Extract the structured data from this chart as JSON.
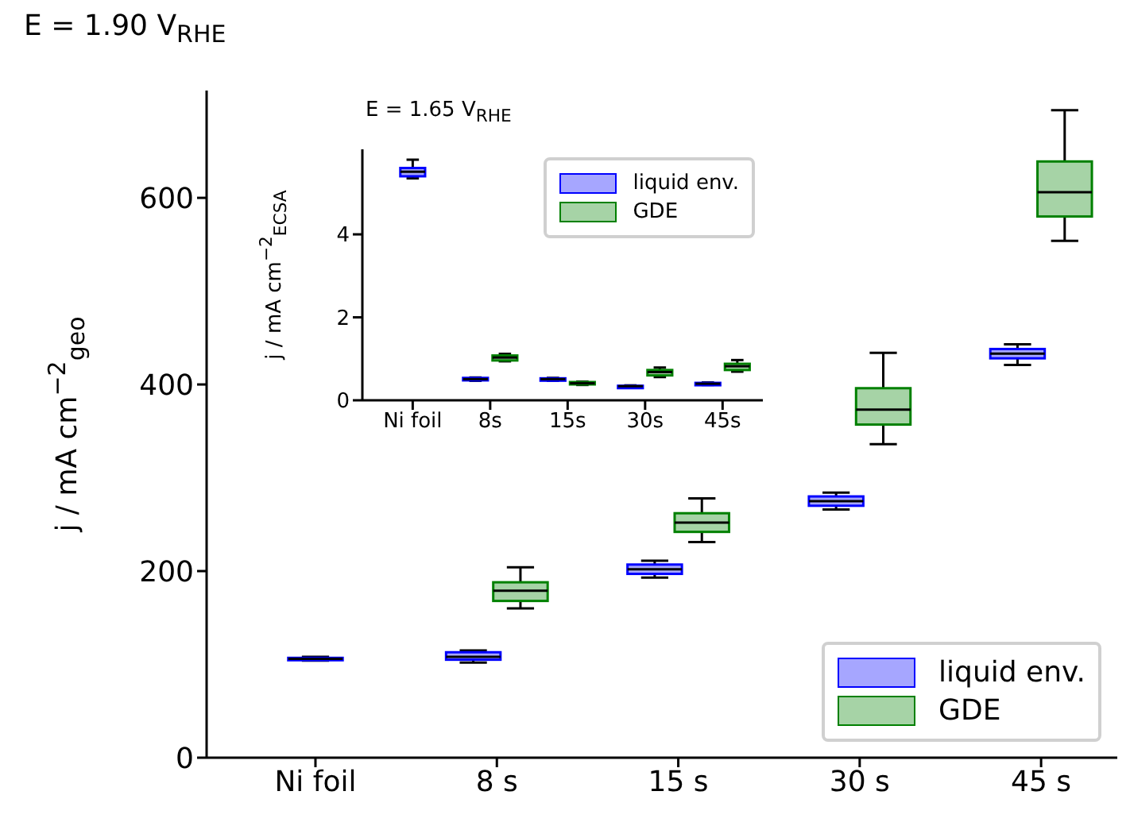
{
  "chart_data": [
    {
      "type": "box",
      "title": "E =  1.90 V$_{RHE}$",
      "ylabel": "j / mA cm$^{−2}$$_{geo}$",
      "categories": [
        "Ni foil",
        "8 s",
        "15 s",
        "30 s",
        "45 s"
      ],
      "ylim": [
        0,
        715
      ],
      "yticks": [
        0,
        200,
        400,
        600
      ],
      "legend": "bottom right",
      "series": [
        {
          "name": "liquid env.",
          "color": "#0000ff",
          "boxes": [
            {
              "low": 104,
              "q1": 105,
              "median": 106,
              "q3": 107,
              "high": 108
            },
            {
              "low": 102,
              "q1": 105,
              "median": 108,
              "q3": 113,
              "high": 115
            },
            {
              "low": 193,
              "q1": 197,
              "median": 202,
              "q3": 207,
              "high": 211
            },
            {
              "low": 266,
              "q1": 270,
              "median": 275,
              "q3": 280,
              "high": 284
            },
            {
              "low": 421,
              "q1": 428,
              "median": 433,
              "q3": 438,
              "high": 443
            }
          ]
        },
        {
          "name": "GDE",
          "color": "#008000",
          "boxes": [
            null,
            {
              "low": 160,
              "q1": 168,
              "median": 179,
              "q3": 188,
              "high": 204
            },
            {
              "low": 231,
              "q1": 242,
              "median": 252,
              "q3": 262,
              "high": 278
            },
            {
              "low": 336,
              "q1": 357,
              "median": 373,
              "q3": 396,
              "high": 434
            },
            {
              "low": 554,
              "q1": 580,
              "median": 606,
              "q3": 639,
              "high": 694
            }
          ]
        }
      ]
    },
    {
      "type": "box",
      "title": "E = 1.65 V$_{RHE}$",
      "ylabel": "j / mA cm$^{−2}$$_{ECSA}$",
      "categories": [
        "Ni foil",
        "8s",
        "15s",
        "30s",
        "45s"
      ],
      "ylim": [
        0,
        6.05
      ],
      "yticks": [
        0,
        2,
        4
      ],
      "legend": "top right",
      "series": [
        {
          "name": "liquid env.",
          "color": "#0000ff",
          "boxes": [
            {
              "low": 5.35,
              "q1": 5.4,
              "median": 5.51,
              "q3": 5.6,
              "high": 5.8
            },
            {
              "low": 0.47,
              "q1": 0.48,
              "median": 0.51,
              "q3": 0.54,
              "high": 0.55
            },
            {
              "low": 0.47,
              "q1": 0.49,
              "median": 0.51,
              "q3": 0.53,
              "high": 0.54
            },
            {
              "low": 0.32,
              "q1": 0.33,
              "median": 0.34,
              "q3": 0.35,
              "high": 0.36
            },
            {
              "low": 0.37,
              "q1": 0.38,
              "median": 0.4,
              "q3": 0.42,
              "high": 0.43
            }
          ]
        },
        {
          "name": "GDE",
          "color": "#008000",
          "boxes": [
            null,
            {
              "low": 0.94,
              "q1": 0.96,
              "median": 1.03,
              "q3": 1.08,
              "high": 1.12
            },
            {
              "low": 0.37,
              "q1": 0.39,
              "median": 0.41,
              "q3": 0.44,
              "high": 0.45
            },
            {
              "low": 0.56,
              "q1": 0.6,
              "median": 0.68,
              "q3": 0.73,
              "high": 0.79
            },
            {
              "low": 0.69,
              "q1": 0.73,
              "median": 0.82,
              "q3": 0.88,
              "high": 0.97
            }
          ]
        }
      ]
    }
  ]
}
